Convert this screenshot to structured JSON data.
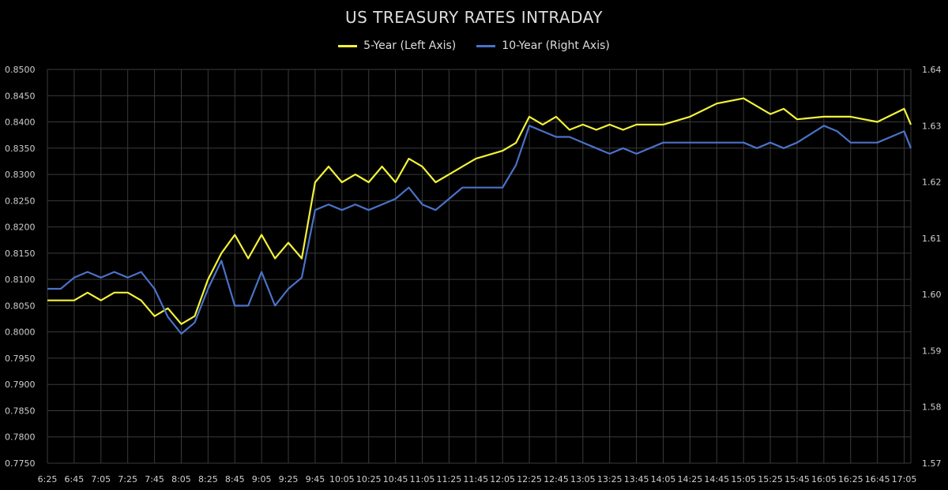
{
  "colors": {
    "five_year": "#f2f23a",
    "ten_year": "#4a72c8",
    "grid": "#3a3a3a"
  },
  "chart_data": {
    "type": "line",
    "title": "US TREASURY RATES INTRADAY",
    "legend_position": "top-center",
    "grid": true,
    "x_tick_labels": [
      "6:25",
      "6:45",
      "7:05",
      "7:25",
      "7:45",
      "8:05",
      "8:25",
      "8:45",
      "9:05",
      "9:25",
      "9:45",
      "10:05",
      "10:25",
      "10:45",
      "11:05",
      "11:25",
      "11:45",
      "12:05",
      "12:25",
      "12:45",
      "13:05",
      "13:25",
      "13:45",
      "14:05",
      "14:25",
      "14:45",
      "15:05",
      "15:25",
      "15:45",
      "16:05",
      "16:25",
      "16:45",
      "17:05"
    ],
    "left_axis": {
      "ylim": [
        0.775,
        0.85
      ],
      "ticks": [
        "0.8500",
        "0.8450",
        "0.8400",
        "0.8350",
        "0.8300",
        "0.8250",
        "0.8200",
        "0.8150",
        "0.8100",
        "0.8050",
        "0.8000",
        "0.7950",
        "0.7900",
        "0.7850",
        "0.7800",
        "0.7750"
      ]
    },
    "right_axis": {
      "ylim": [
        1.57,
        1.64
      ],
      "ticks": [
        "1.64",
        "1.63",
        "1.62",
        "1.61",
        "1.60",
        "1.59",
        "1.58",
        "1.57"
      ]
    },
    "series": [
      {
        "name": "5-Year (Left Axis)",
        "axis": "left",
        "points": [
          [
            "6:25",
            0.806
          ],
          [
            "6:45",
            0.806
          ],
          [
            "6:55",
            0.8075
          ],
          [
            "7:05",
            0.806
          ],
          [
            "7:15",
            0.8075
          ],
          [
            "7:25",
            0.8075
          ],
          [
            "7:35",
            0.806
          ],
          [
            "7:45",
            0.803
          ],
          [
            "7:55",
            0.8045
          ],
          [
            "8:05",
            0.8015
          ],
          [
            "8:15",
            0.803
          ],
          [
            "8:25",
            0.81
          ],
          [
            "8:35",
            0.815
          ],
          [
            "8:45",
            0.8185
          ],
          [
            "8:55",
            0.814
          ],
          [
            "9:05",
            0.8185
          ],
          [
            "9:15",
            0.814
          ],
          [
            "9:25",
            0.817
          ],
          [
            "9:35",
            0.814
          ],
          [
            "9:45",
            0.8285
          ],
          [
            "9:55",
            0.8315
          ],
          [
            "10:05",
            0.8285
          ],
          [
            "10:15",
            0.83
          ],
          [
            "10:25",
            0.8285
          ],
          [
            "10:35",
            0.8315
          ],
          [
            "10:45",
            0.8285
          ],
          [
            "10:55",
            0.833
          ],
          [
            "11:05",
            0.8315
          ],
          [
            "11:15",
            0.8285
          ],
          [
            "11:25",
            0.83
          ],
          [
            "11:35",
            0.8315
          ],
          [
            "11:45",
            0.833
          ],
          [
            "12:05",
            0.8345
          ],
          [
            "12:15",
            0.836
          ],
          [
            "12:25",
            0.841
          ],
          [
            "12:35",
            0.8395
          ],
          [
            "12:45",
            0.841
          ],
          [
            "12:55",
            0.8385
          ],
          [
            "13:05",
            0.8395
          ],
          [
            "13:15",
            0.8385
          ],
          [
            "13:25",
            0.8395
          ],
          [
            "13:35",
            0.8385
          ],
          [
            "13:45",
            0.8395
          ],
          [
            "14:05",
            0.8395
          ],
          [
            "14:25",
            0.841
          ],
          [
            "14:45",
            0.8435
          ],
          [
            "15:05",
            0.8445
          ],
          [
            "15:15",
            0.843
          ],
          [
            "15:25",
            0.8415
          ],
          [
            "15:35",
            0.8425
          ],
          [
            "15:45",
            0.8405
          ],
          [
            "16:05",
            0.841
          ],
          [
            "16:25",
            0.841
          ],
          [
            "16:45",
            0.84
          ],
          [
            "17:05",
            0.8425
          ],
          [
            "17:10",
            0.8395
          ]
        ]
      },
      {
        "name": "10-Year (Right Axis)",
        "axis": "right",
        "points": [
          [
            "6:25",
            1.601
          ],
          [
            "6:35",
            1.601
          ],
          [
            "6:45",
            1.603
          ],
          [
            "6:55",
            1.604
          ],
          [
            "7:05",
            1.603
          ],
          [
            "7:15",
            1.604
          ],
          [
            "7:25",
            1.603
          ],
          [
            "7:35",
            1.604
          ],
          [
            "7:45",
            1.601
          ],
          [
            "7:55",
            1.596
          ],
          [
            "8:05",
            1.593
          ],
          [
            "8:15",
            1.595
          ],
          [
            "8:25",
            1.601
          ],
          [
            "8:35",
            1.606
          ],
          [
            "8:45",
            1.598
          ],
          [
            "8:55",
            1.598
          ],
          [
            "9:05",
            1.604
          ],
          [
            "9:15",
            1.598
          ],
          [
            "9:25",
            1.601
          ],
          [
            "9:35",
            1.603
          ],
          [
            "9:45",
            1.615
          ],
          [
            "9:55",
            1.616
          ],
          [
            "10:05",
            1.615
          ],
          [
            "10:15",
            1.616
          ],
          [
            "10:25",
            1.615
          ],
          [
            "10:35",
            1.616
          ],
          [
            "10:45",
            1.617
          ],
          [
            "10:55",
            1.619
          ],
          [
            "11:05",
            1.616
          ],
          [
            "11:15",
            1.615
          ],
          [
            "11:25",
            1.617
          ],
          [
            "11:35",
            1.619
          ],
          [
            "11:45",
            1.619
          ],
          [
            "12:05",
            1.619
          ],
          [
            "12:15",
            1.623
          ],
          [
            "12:25",
            1.63
          ],
          [
            "12:35",
            1.629
          ],
          [
            "12:45",
            1.628
          ],
          [
            "12:55",
            1.628
          ],
          [
            "13:05",
            1.627
          ],
          [
            "13:15",
            1.626
          ],
          [
            "13:25",
            1.625
          ],
          [
            "13:35",
            1.626
          ],
          [
            "13:45",
            1.625
          ],
          [
            "14:05",
            1.627
          ],
          [
            "14:25",
            1.627
          ],
          [
            "14:45",
            1.627
          ],
          [
            "15:05",
            1.627
          ],
          [
            "15:15",
            1.626
          ],
          [
            "15:25",
            1.627
          ],
          [
            "15:35",
            1.626
          ],
          [
            "15:45",
            1.627
          ],
          [
            "16:05",
            1.63
          ],
          [
            "16:15",
            1.629
          ],
          [
            "16:25",
            1.627
          ],
          [
            "16:45",
            1.627
          ],
          [
            "16:55",
            1.628
          ],
          [
            "17:05",
            1.629
          ],
          [
            "17:10",
            1.626
          ]
        ]
      }
    ]
  }
}
